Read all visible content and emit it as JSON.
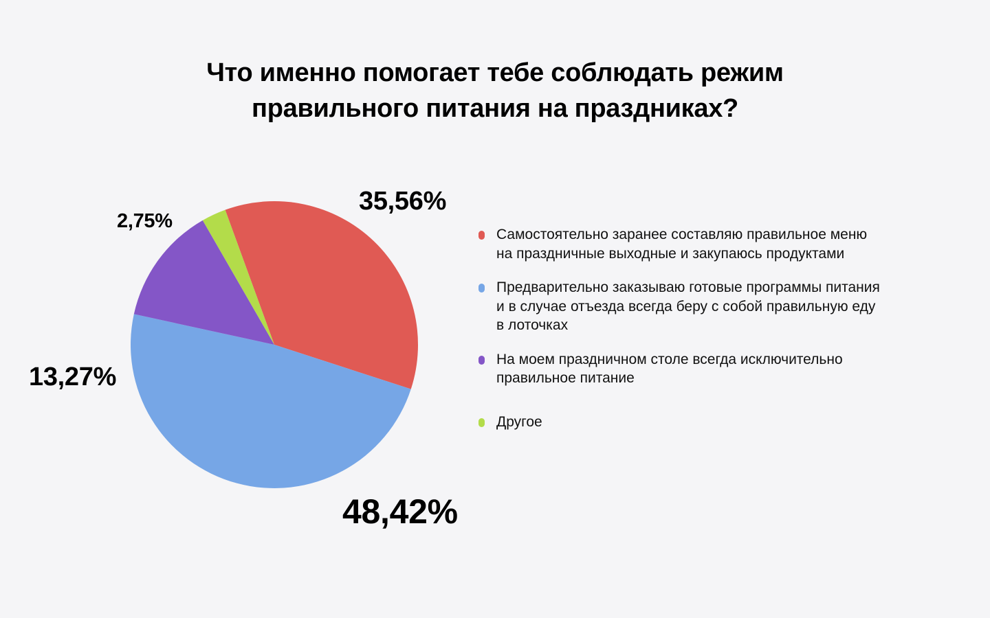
{
  "chart_data": {
    "type": "pie",
    "title_lines": [
      "Что именно помогает тебе соблюдать режим",
      "правильного питания на праздниках?"
    ],
    "slices": [
      {
        "label_lines": [
          "Самостоятельно заранее составляю правильное меню",
          "на праздничные выходные и закупаюсь продуктами"
        ],
        "value": 35.56,
        "value_label": "35,56%",
        "color": "#e05a54"
      },
      {
        "label_lines": [
          "Предварительно заказываю готовые программы питания",
          "и в случае отъезда всегда беру с собой правильную еду",
          "в лоточках"
        ],
        "value": 48.42,
        "value_label": "48,42%",
        "color": "#76a6e6"
      },
      {
        "label_lines": [
          "На моем праздничном столе всегда исключительно",
          "правильное питание"
        ],
        "value": 13.27,
        "value_label": "13,27%",
        "color": "#8456c7"
      },
      {
        "label_lines": [
          "Другое"
        ],
        "value": 2.75,
        "value_label": "2,75%",
        "color": "#b3dc4a"
      }
    ],
    "legend_position": "right"
  }
}
